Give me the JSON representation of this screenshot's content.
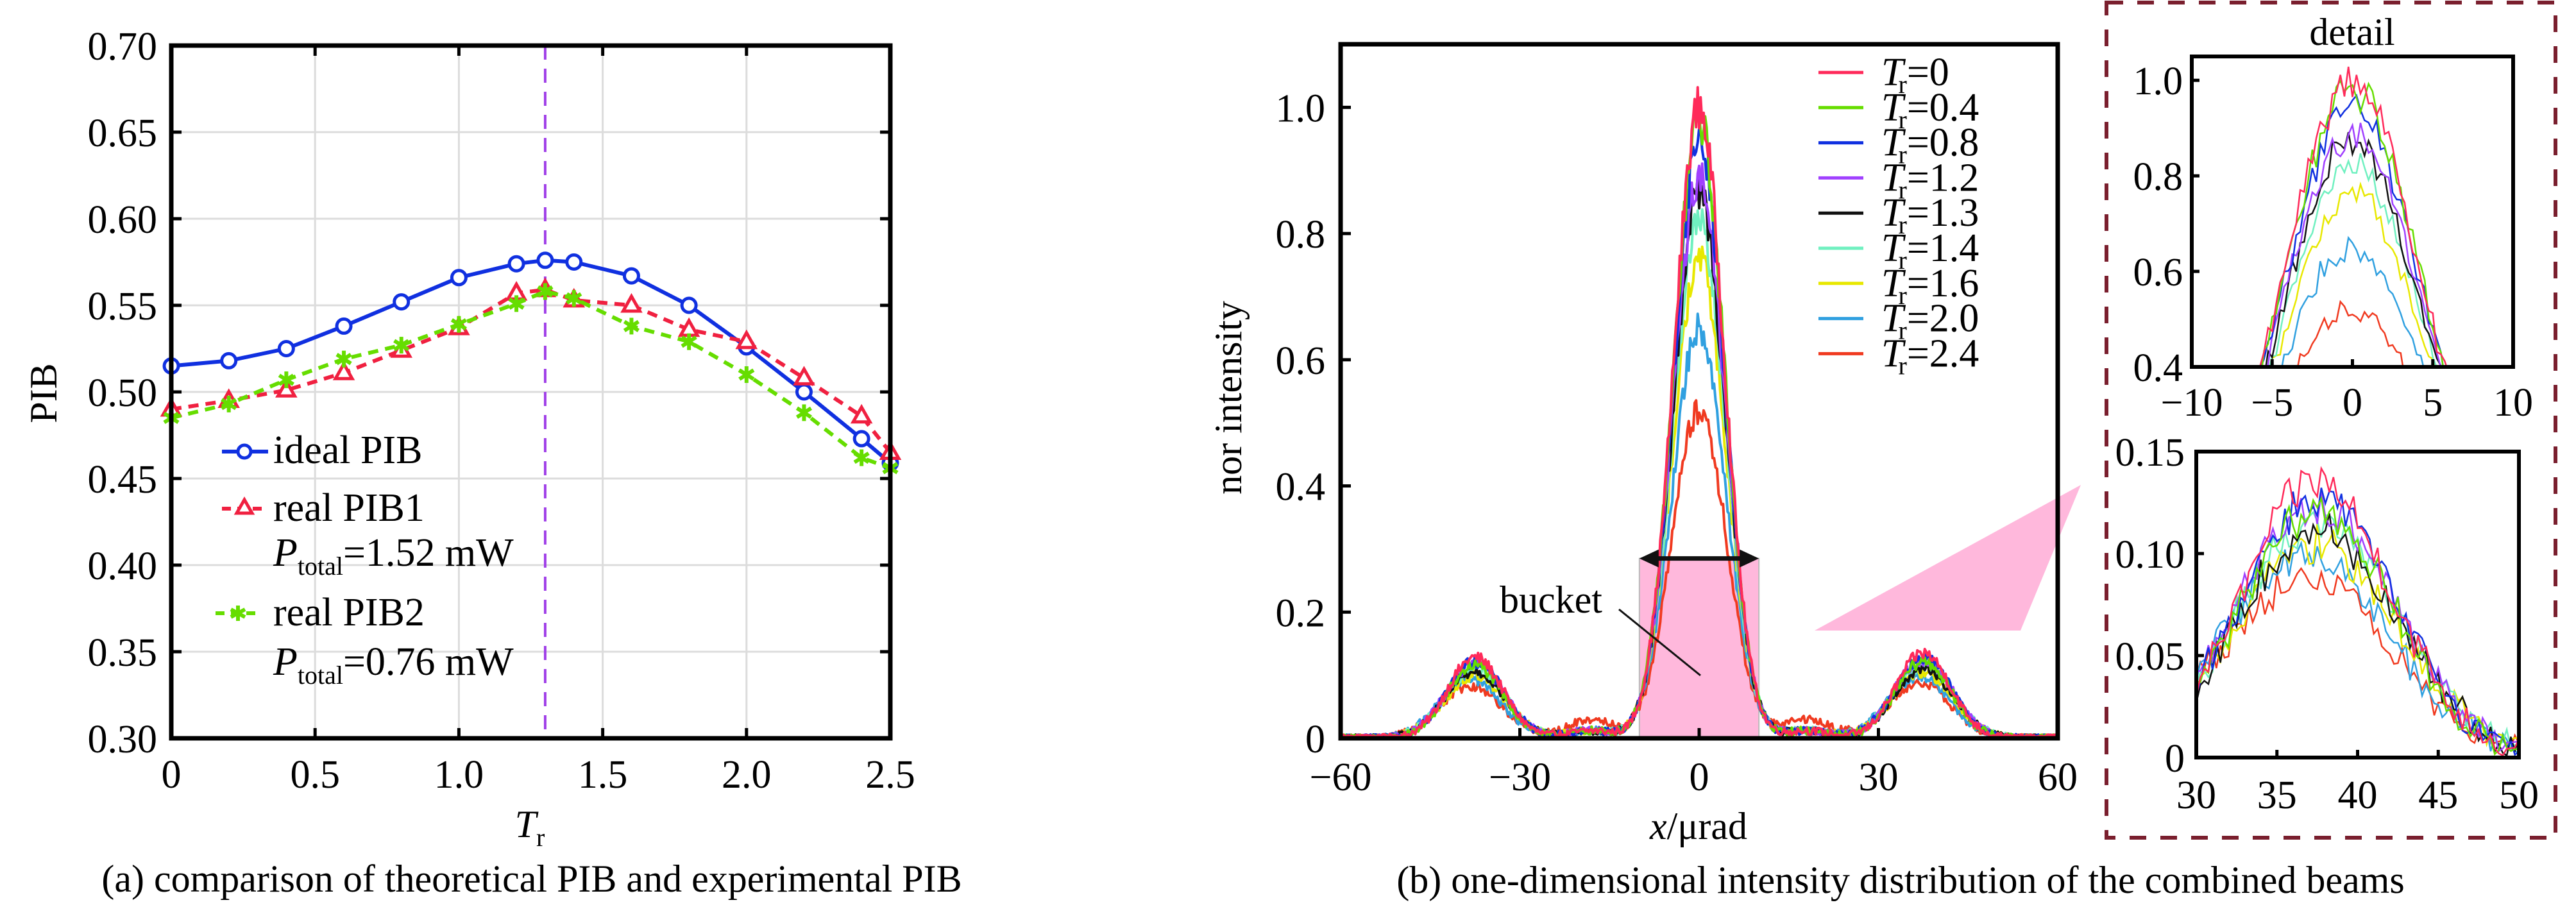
{
  "chart_data": [
    {
      "id": "a",
      "type": "line",
      "caption": "(a) comparison of theoretical PIB and experimental PIB",
      "xlabel_main": "T",
      "xlabel_sub": "r",
      "ylabel": "PIB",
      "xlim": [
        0,
        2.5
      ],
      "ylim": [
        0.3,
        0.7
      ],
      "xticks": [
        0,
        0.5,
        1.0,
        1.5,
        2.0,
        2.5
      ],
      "xtick_labels": [
        "0",
        "0.5",
        "1.0",
        "1.5",
        "2.0",
        "2.5"
      ],
      "yticks": [
        0.3,
        0.35,
        0.4,
        0.45,
        0.5,
        0.55,
        0.6,
        0.65,
        0.7
      ],
      "ytick_labels": [
        "0.30",
        "0.35",
        "0.40",
        "0.45",
        "0.50",
        "0.55",
        "0.60",
        "0.65",
        "0.70"
      ],
      "grid": true,
      "vline": {
        "x": 1.3,
        "color": "#a040e8"
      },
      "x": [
        0,
        0.2,
        0.4,
        0.6,
        0.8,
        1.0,
        1.2,
        1.3,
        1.4,
        1.6,
        1.8,
        2.0,
        2.2,
        2.4,
        2.5
      ],
      "series": [
        {
          "name": "ideal PIB",
          "color": "#1030e0",
          "style": "solid",
          "marker": "circle",
          "values": [
            0.515,
            0.518,
            0.525,
            0.538,
            0.552,
            0.566,
            0.574,
            0.576,
            0.575,
            0.567,
            0.55,
            0.526,
            0.5,
            0.473,
            0.459
          ]
        },
        {
          "name": "real PIB1",
          "color": "#f02040",
          "style": "dashed",
          "marker": "triangle",
          "values": [
            0.49,
            0.495,
            0.501,
            0.511,
            0.524,
            0.537,
            0.557,
            0.559,
            0.553,
            0.55,
            0.536,
            0.529,
            0.508,
            0.486,
            0.465
          ]
        },
        {
          "name": "real PIB2",
          "color": "#66dd00",
          "style": "dashed",
          "marker": "asterisk",
          "values": [
            0.485,
            0.493,
            0.507,
            0.519,
            0.527,
            0.539,
            0.551,
            0.558,
            0.554,
            0.538,
            0.529,
            0.51,
            0.488,
            0.462,
            0.456
          ]
        }
      ],
      "legend": {
        "position": "left-middle",
        "notes": [
          {
            "after": "real PIB1",
            "main": "P",
            "sub": "total",
            "text": "=1.52 mW"
          },
          {
            "after": "real PIB2",
            "main": "P",
            "sub": "total",
            "text": "=0.76 mW"
          }
        ]
      }
    },
    {
      "id": "b",
      "type": "line",
      "caption": "(b) one-dimensional intensity distribution of the combined beams",
      "xlabel_main": "x",
      "xlabel_rest": "/μrad",
      "ylabel": "nor intensity",
      "xlim": [
        -60,
        60
      ],
      "ylim": [
        0,
        1.1
      ],
      "xticks": [
        -60,
        -30,
        0,
        30,
        60
      ],
      "xtick_labels": [
        "−60",
        "−30",
        "0",
        "30",
        "60"
      ],
      "yticks": [
        0,
        0.2,
        0.4,
        0.6,
        0.8,
        1.0
      ],
      "ytick_labels": [
        "0",
        "0.2",
        "0.4",
        "0.6",
        "0.8",
        "1.0"
      ],
      "grid": false,
      "bucket": {
        "label": "bucket",
        "x_range": [
          -10,
          10
        ],
        "height": 0.285,
        "color": "#ffb8dc"
      },
      "legend_position": "top-right",
      "series": [
        {
          "name": "T_r=0",
          "label_value": "=0",
          "color": "#ff2a5a",
          "peak": 1.0,
          "side_peak": 0.135
        },
        {
          "name": "T_r=0.4",
          "label_value": "=0.4",
          "color": "#66dd00",
          "peak": 0.98,
          "side_peak": 0.122
        },
        {
          "name": "T_r=0.8",
          "label_value": "=0.8",
          "color": "#1030e0",
          "peak": 0.95,
          "side_peak": 0.128
        },
        {
          "name": "T_r=1.2",
          "label_value": "=1.2",
          "color": "#a040ff",
          "peak": 0.89,
          "side_peak": 0.125
        },
        {
          "name": "T_r=1.3",
          "label_value": "=1.3",
          "color": "#111111",
          "peak": 0.87,
          "side_peak": 0.112
        },
        {
          "name": "T_r=1.4",
          "label_value": "=1.4",
          "color": "#70f0c0",
          "peak": 0.82,
          "side_peak": 0.116
        },
        {
          "name": "T_r=1.6",
          "label_value": "=1.6",
          "color": "#e8e800",
          "peak": 0.76,
          "side_peak": 0.105
        },
        {
          "name": "T_r=2.0",
          "label_value": "=2.0",
          "color": "#30a0e0",
          "peak": 0.65,
          "side_peak": 0.098
        },
        {
          "name": "T_r=2.4",
          "label_value": "=2.4",
          "color": "#f03a20",
          "peak": 0.52,
          "side_peak": 0.088
        }
      ],
      "legend_main": "T",
      "legend_sub": "r",
      "side_lobe_center": 37.5,
      "detail": {
        "title": "detail",
        "border_color": "#7a1f2e",
        "top": {
          "xlim": [
            -10,
            10
          ],
          "ylim": [
            0.4,
            1.05
          ],
          "xticks": [
            -10,
            -5,
            0,
            5,
            10
          ],
          "xtick_labels": [
            "−10",
            "−5",
            "0",
            "5",
            "10"
          ],
          "yticks": [
            0.4,
            0.6,
            0.8,
            1.0
          ],
          "ytick_labels": [
            "0.4",
            "0.6",
            "0.8",
            "1.0"
          ]
        },
        "bottom": {
          "xlim": [
            30,
            50
          ],
          "ylim": [
            0,
            0.15
          ],
          "xticks": [
            30,
            35,
            40,
            45,
            50
          ],
          "xtick_labels": [
            "30",
            "35",
            "40",
            "45",
            "50"
          ],
          "yticks": [
            0,
            0.05,
            0.1,
            0.15
          ],
          "ytick_labels": [
            "0",
            "0.05",
            "0.10",
            "0.15"
          ]
        }
      }
    }
  ]
}
